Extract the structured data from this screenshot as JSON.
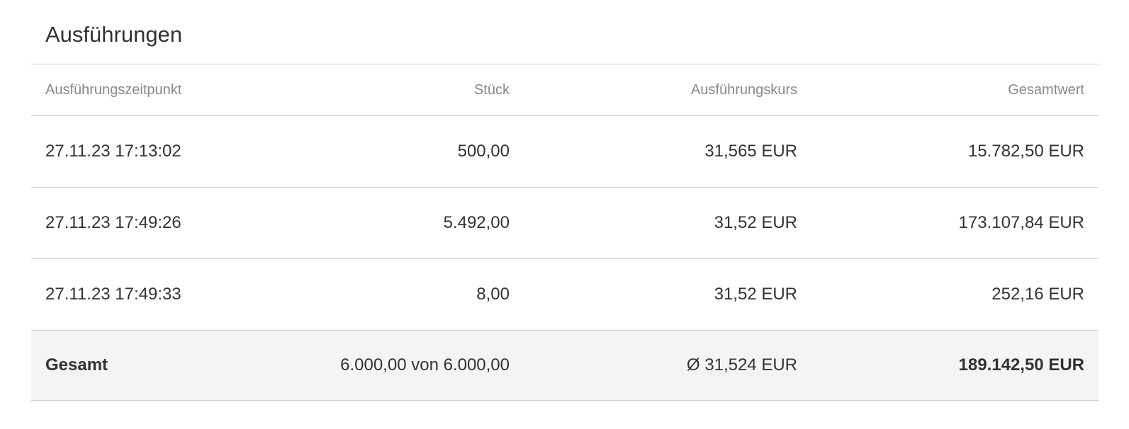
{
  "title": "Ausführungen",
  "columns": [
    "Ausführungszeitpunkt",
    "Stück",
    "Ausführungskurs",
    "Gesamtwert"
  ],
  "rows": [
    [
      "27.11.23 17:13:02",
      "500,00",
      "31,565 EUR",
      "15.782,50 EUR"
    ],
    [
      "27.11.23 17:49:26",
      "5.492,00",
      "31,52 EUR",
      "173.107,84 EUR"
    ],
    [
      "27.11.23 17:49:33",
      "8,00",
      "31,52 EUR",
      "252,16 EUR"
    ]
  ],
  "total": [
    "Gesamt",
    "6.000,00 von 6.000,00",
    "Ø 31,524 EUR",
    "189.142,50 EUR"
  ]
}
